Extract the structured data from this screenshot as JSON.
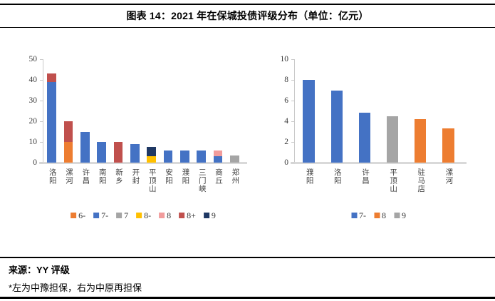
{
  "title": "图表 14：2021 年在保城投债评级分布（单位：亿元）",
  "footer": {
    "source": "来源：YY 评级",
    "note": "*左为中豫担保，右为中原再担保"
  },
  "colors": {
    "rating_6_minus": "#ED7D31",
    "rating_7_minus": "#4472C4",
    "rating_7": "#A5A5A5",
    "rating_8_minus": "#FFC000",
    "rating_8_pink": "#F19C9C",
    "rating_8_plus": "#C0504D",
    "rating_9_navy": "#1F3864",
    "right_rating_8_orange": "#ED7D31",
    "right_rating_9_gray": "#A5A5A5",
    "axis_line": "#C9C9C9",
    "baseline": "#D9D9D9"
  },
  "chart_data": [
    {
      "type": "bar",
      "stacked": true,
      "categories": [
        "洛阳",
        "漯河",
        "许昌",
        "南阳",
        "新乡",
        "开封",
        "平顶山",
        "安阳",
        "濮阳",
        "三门峡",
        "商丘",
        "郑州"
      ],
      "series": [
        {
          "name": "6-",
          "color": "#ED7D31",
          "values": [
            0,
            10,
            0,
            0,
            0,
            0,
            0,
            0,
            0,
            0,
            0,
            0
          ]
        },
        {
          "name": "7-",
          "color": "#4472C4",
          "values": [
            39,
            0,
            15,
            10,
            0,
            9,
            0,
            6,
            6,
            6,
            3,
            0
          ]
        },
        {
          "name": "7",
          "color": "#A5A5A5",
          "values": [
            0,
            0,
            0,
            0,
            0,
            0,
            0,
            0,
            0,
            0,
            0,
            3.3
          ]
        },
        {
          "name": "8-",
          "color": "#FFC000",
          "values": [
            0,
            0,
            0,
            0,
            0,
            0,
            3,
            0,
            0,
            0,
            0,
            0
          ]
        },
        {
          "name": "8",
          "color": "#F19C9C",
          "values": [
            0,
            0,
            0,
            0,
            0,
            0,
            0,
            0,
            0,
            0,
            3,
            0
          ]
        },
        {
          "name": "8+",
          "color": "#C0504D",
          "values": [
            4,
            10,
            0,
            0,
            10,
            0,
            0,
            0,
            0,
            0,
            0,
            0
          ]
        },
        {
          "name": "9",
          "color": "#1F3864",
          "values": [
            0,
            0,
            0,
            0,
            0,
            0,
            4.5,
            0,
            0,
            0,
            0,
            0
          ]
        }
      ],
      "ylim": [
        0,
        50
      ],
      "ytick_step": 10,
      "bar_width_frac": 0.55,
      "grid": false,
      "legend": [
        "6-",
        "7-",
        "7",
        "8-",
        "8",
        "8+",
        "9"
      ],
      "legend_position": "bottom"
    },
    {
      "type": "bar",
      "stacked": false,
      "categories": [
        "濮阳",
        "洛阳",
        "许昌",
        "平顶山",
        "驻马店",
        "漯河"
      ],
      "series": [
        {
          "name": "7-",
          "color": "#4472C4",
          "values": [
            8,
            7,
            4.8,
            0,
            0,
            0
          ]
        },
        {
          "name": "8",
          "color": "#ED7D31",
          "values": [
            0,
            0,
            0,
            0,
            4.2,
            3.3
          ]
        },
        {
          "name": "9",
          "color": "#A5A5A5",
          "values": [
            0,
            0,
            0,
            4.5,
            0,
            0
          ]
        }
      ],
      "ylim": [
        0,
        10
      ],
      "ytick_step": 2,
      "bar_width_frac": 0.42,
      "grid": false,
      "legend": [
        "7-",
        "8",
        "9"
      ],
      "legend_position": "bottom"
    }
  ]
}
